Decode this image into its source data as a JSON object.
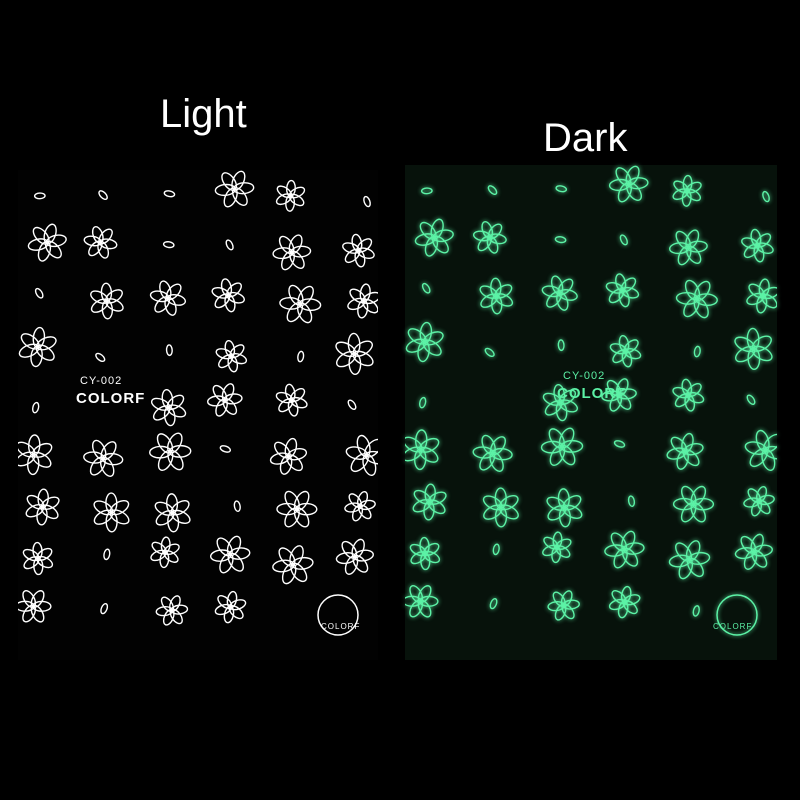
{
  "labels": {
    "light": "Light",
    "dark": "Dark"
  },
  "sheets": [
    {
      "mode": "light",
      "code": "CY-002",
      "brand": "COLORF",
      "logo_text": "COLORF",
      "line_color": "#ffffff"
    },
    {
      "mode": "dark",
      "code": "CY-002",
      "brand": "COLORF",
      "logo_text": "COLORF",
      "line_color": "#5cf2a6"
    }
  ]
}
